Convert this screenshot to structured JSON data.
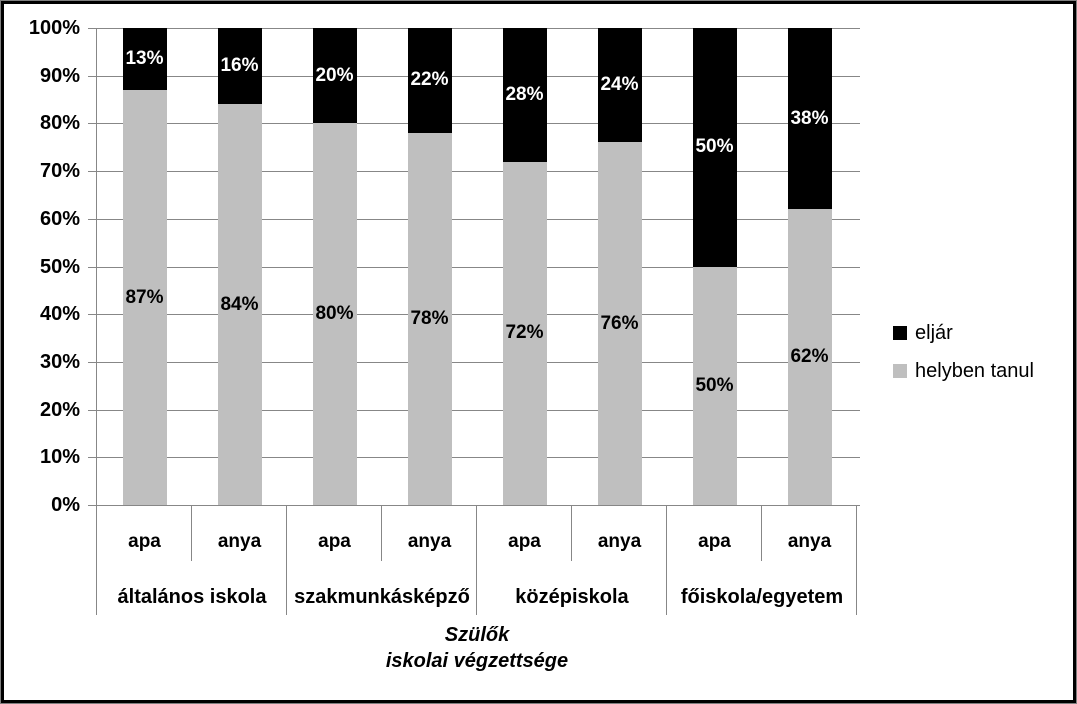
{
  "chart_data": {
    "type": "bar",
    "variant": "stacked-100-percent",
    "title": "",
    "xlabel_lines": [
      "Szülők",
      "iskolai végzettsége"
    ],
    "ylabel": "",
    "ylim": [
      0,
      100
    ],
    "grid": "horizontal",
    "legend_position": "right",
    "y_ticks": [
      "100%",
      "90%",
      "80%",
      "70%",
      "60%",
      "50%",
      "40%",
      "30%",
      "20%",
      "10%",
      "0%"
    ],
    "subcategories": [
      "apa",
      "anya"
    ],
    "groups": [
      {
        "label": "általános iskola",
        "bars": [
          {
            "label": "apa",
            "helyben_tanul": 87,
            "eljar": 13
          },
          {
            "label": "anya",
            "helyben_tanul": 84,
            "eljar": 16
          }
        ]
      },
      {
        "label": "szakmunkásképző",
        "bars": [
          {
            "label": "apa",
            "helyben_tanul": 80,
            "eljar": 20
          },
          {
            "label": "anya",
            "helyben_tanul": 78,
            "eljar": 22
          }
        ]
      },
      {
        "label": "középiskola",
        "bars": [
          {
            "label": "apa",
            "helyben_tanul": 72,
            "eljar": 28
          },
          {
            "label": "anya",
            "helyben_tanul": 76,
            "eljar": 24
          }
        ]
      },
      {
        "label": "főiskola/egyetem",
        "bars": [
          {
            "label": "apa",
            "helyben_tanul": 50,
            "eljar": 50
          },
          {
            "label": "anya",
            "helyben_tanul": 62,
            "eljar": 38
          }
        ]
      }
    ],
    "series": [
      {
        "name": "eljár",
        "color": "#000000",
        "label_color": "#ffffff"
      },
      {
        "name": "helyben tanul",
        "color": "#bfbfbf",
        "label_color": "#000000"
      }
    ],
    "value_suffix": "%",
    "colors": {
      "gridline": "#878787",
      "axis_line": "#878787",
      "frame_border": "#000000",
      "background": "#ffffff"
    }
  }
}
